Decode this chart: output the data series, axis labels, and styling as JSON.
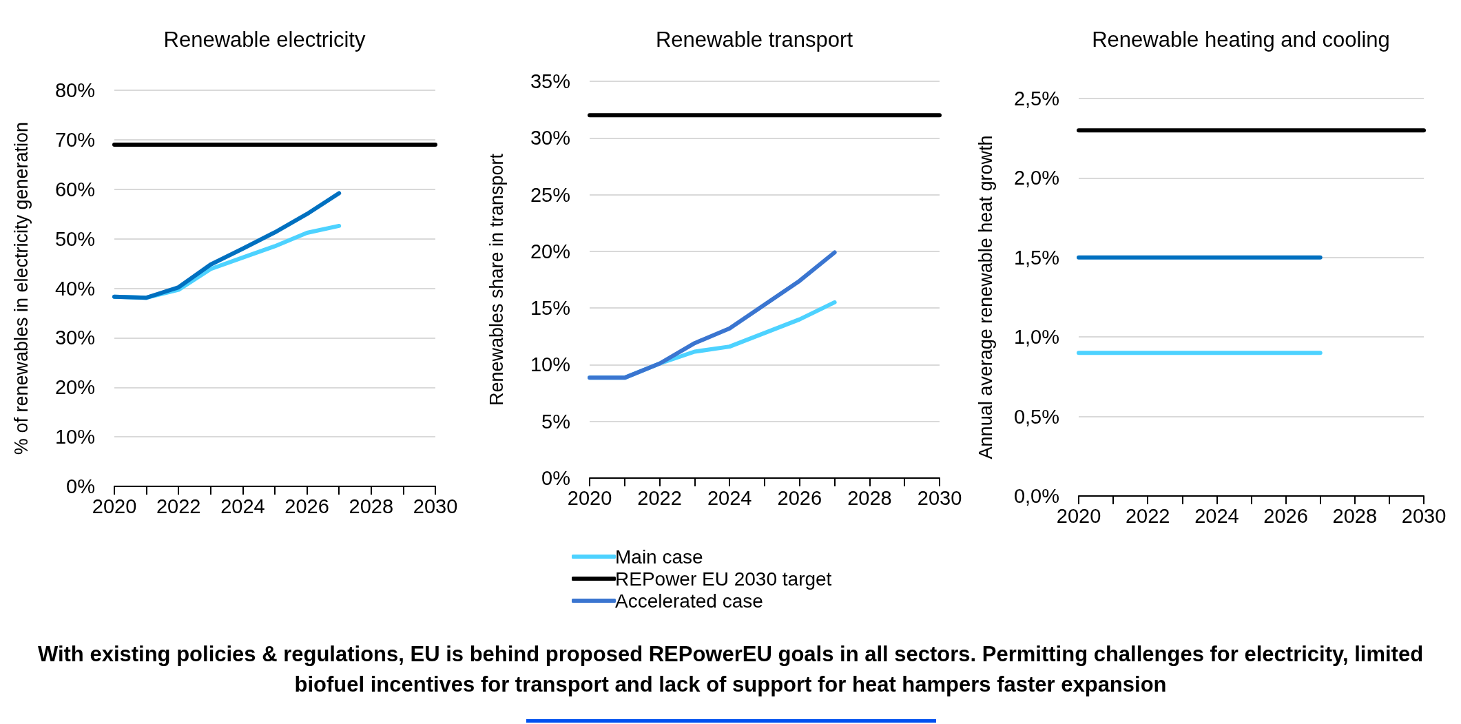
{
  "chart_data": [
    {
      "type": "line",
      "title": "Renewable electricity",
      "ylabel": "% of renewables in electricity generation",
      "xlim": [
        2020,
        2030
      ],
      "xticks": [
        2020,
        {
          "value": 2021,
          "label": null
        },
        2022,
        {
          "value": 2023,
          "label": null
        },
        2024,
        {
          "value": 2025,
          "label": null
        },
        2026,
        {
          "value": 2027,
          "label": null
        },
        2028,
        {
          "value": 2029,
          "label": null
        },
        2030
      ],
      "ylim": [
        0,
        80
      ],
      "yticks": [
        {
          "value": 0,
          "label": "0%"
        },
        {
          "value": 10,
          "label": "10%"
        },
        {
          "value": 20,
          "label": "20%"
        },
        {
          "value": 30,
          "label": "30%"
        },
        {
          "value": 40,
          "label": "40%"
        },
        {
          "value": 50,
          "label": "50%"
        },
        {
          "value": 60,
          "label": "60%"
        },
        {
          "value": 70,
          "label": "70%"
        },
        {
          "value": 80,
          "label": "80%"
        }
      ],
      "grid": "y",
      "legend": false,
      "line_style": "solid",
      "series": [
        {
          "color": "#4dd2ff",
          "x": [
            2020,
            2021,
            2022,
            2023,
            2024,
            2025,
            2026,
            2027
          ],
          "values": [
            38.3,
            38.1,
            39.7,
            43.9,
            46.2,
            48.5,
            51.2,
            52.6
          ]
        },
        {
          "color": "#000000",
          "x": [
            2020,
            2030
          ],
          "values": [
            69,
            69
          ]
        },
        {
          "color": "#0070c0",
          "x": [
            2020,
            2021,
            2022,
            2023,
            2024,
            2025,
            2026,
            2027
          ],
          "values": [
            38.3,
            38.1,
            40.2,
            44.8,
            48,
            51.3,
            55,
            59.2
          ]
        }
      ]
    },
    {
      "type": "line",
      "title": "Renewable transport",
      "ylabel": "Renewables share in transport",
      "xlim": [
        2020,
        2030
      ],
      "xticks": [
        2020,
        {
          "value": 2021,
          "label": null
        },
        2022,
        {
          "value": 2023,
          "label": null
        },
        2024,
        {
          "value": 2025,
          "label": null
        },
        2026,
        {
          "value": 2027,
          "label": null
        },
        2028,
        {
          "value": 2029,
          "label": null
        },
        2030
      ],
      "ylim": [
        0,
        35
      ],
      "yticks": [
        {
          "value": 0,
          "label": "0%"
        },
        {
          "value": 5,
          "label": "5%"
        },
        {
          "value": 10,
          "label": "10%"
        },
        {
          "value": 15,
          "label": "15%"
        },
        {
          "value": 20,
          "label": "20%"
        },
        {
          "value": 25,
          "label": "25%"
        },
        {
          "value": 30,
          "label": "30%"
        },
        {
          "value": 35,
          "label": "35%"
        }
      ],
      "grid": "y",
      "legend": "bottom",
      "line_style": "solid",
      "annotations": [
        "With existing policies & regulations, EU is behind proposed REPowerEU goals in all sectors. Permitting challenges for electricity, limited biofuel incentives for transport and lack of support for heat hampers faster expansion"
      ],
      "series": [
        {
          "name": "Main case",
          "color": "#4dd2ff",
          "x": [
            2020,
            2021,
            2022,
            2023,
            2024,
            2025,
            2026,
            2027
          ],
          "values": [
            8.85,
            8.85,
            10.1,
            11.15,
            11.6,
            12.8,
            14,
            15.5
          ]
        },
        {
          "name": "REPower EU 2030 target",
          "color": "#000000",
          "x": [
            2020,
            2030
          ],
          "values": [
            32,
            32
          ]
        },
        {
          "name": "Accelerated case",
          "color": "#3a75d0",
          "x": [
            2020,
            2021,
            2022,
            2023,
            2024,
            2025,
            2026,
            2027
          ],
          "values": [
            8.85,
            8.85,
            10.1,
            11.9,
            13.2,
            15.3,
            17.4,
            19.9
          ]
        }
      ]
    },
    {
      "type": "line",
      "title": "Renewable heating and cooling",
      "ylabel": "Annual average renewable heat growth",
      "xlim": [
        2020,
        2030
      ],
      "xticks": [
        2020,
        {
          "value": 2021,
          "label": null
        },
        2022,
        {
          "value": 2023,
          "label": null
        },
        2024,
        {
          "value": 2025,
          "label": null
        },
        2026,
        {
          "value": 2027,
          "label": null
        },
        2028,
        {
          "value": 2029,
          "label": null
        },
        2030
      ],
      "ylim": [
        0,
        2.5
      ],
      "yticks": [
        {
          "value": 0,
          "label": "0,0%"
        },
        {
          "value": 0.5,
          "label": "0,5%"
        },
        {
          "value": 1,
          "label": "1,0%"
        },
        {
          "value": 1.5,
          "label": "1,5%"
        },
        {
          "value": 2,
          "label": "2,0%"
        },
        {
          "value": 2.5,
          "label": "2,5%"
        }
      ],
      "grid": "y",
      "legend": false,
      "line_style": "solid",
      "series": [
        {
          "color": "#4dd2ff",
          "x": [
            2020,
            2027
          ],
          "values": [
            0.9,
            0.9
          ]
        },
        {
          "color": "#000000",
          "x": [
            2020,
            2030
          ],
          "values": [
            2.3,
            2.3
          ]
        },
        {
          "color": "#0070c0",
          "x": [
            2020,
            2027
          ],
          "values": [
            1.5,
            1.5
          ]
        }
      ]
    }
  ]
}
